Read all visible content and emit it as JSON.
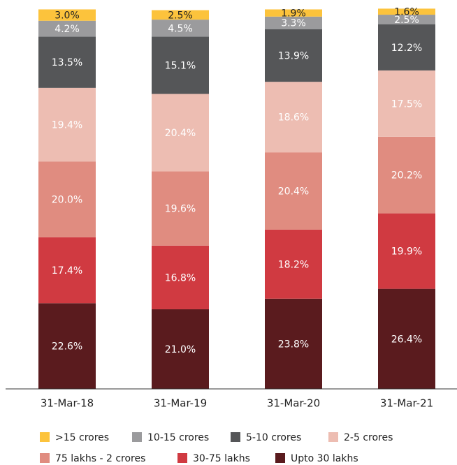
{
  "chart_data": {
    "type": "bar",
    "stacked": true,
    "categories": [
      "31-Mar-18",
      "31-Mar-19",
      "31-Mar-20",
      "31-Mar-21"
    ],
    "ylim": [
      0,
      100
    ],
    "series": [
      {
        "name": ">15 crores",
        "color": "#fcc33c",
        "values": [
          3.0,
          2.5,
          1.9,
          1.6
        ],
        "value_labels": [
          "3.0%",
          "2.5%",
          "1.9%",
          "1.6%"
        ]
      },
      {
        "name": "10-15 crores",
        "color": "#9b9b9d",
        "values": [
          4.2,
          4.5,
          3.3,
          2.5
        ],
        "value_labels": [
          "4.2%",
          "4.5%",
          "3.3%",
          "2.5%"
        ]
      },
      {
        "name": "5-10 crores",
        "color": "#555658",
        "values": [
          13.5,
          15.1,
          13.9,
          12.2
        ],
        "value_labels": [
          "13.5%",
          "15.1%",
          "13.9%",
          "12.2%"
        ]
      },
      {
        "name": "2-5 crores",
        "color": "#edbdb2",
        "values": [
          19.4,
          20.4,
          18.6,
          17.5
        ],
        "value_labels": [
          "19.4%",
          "20.4%",
          "18.6%",
          "17.5%"
        ]
      },
      {
        "name": "75 lakhs - 2 crores",
        "color": "#e08c80",
        "values": [
          20.0,
          19.6,
          20.4,
          20.2
        ],
        "value_labels": [
          "20.0%",
          "19.6%",
          "20.4%",
          "20.2%"
        ]
      },
      {
        "name": "30-75 lakhs",
        "color": "#d03a41",
        "values": [
          17.4,
          16.8,
          18.2,
          19.9
        ],
        "value_labels": [
          "17.4%",
          "16.8%",
          "18.2%",
          "19.9%"
        ]
      },
      {
        "name": "Upto 30 lakhs",
        "color": "#5a1b1e",
        "values": [
          22.6,
          21.0,
          23.8,
          26.4
        ],
        "value_labels": [
          "22.6%",
          "21.0%",
          "23.8%",
          "26.4%"
        ]
      }
    ]
  }
}
